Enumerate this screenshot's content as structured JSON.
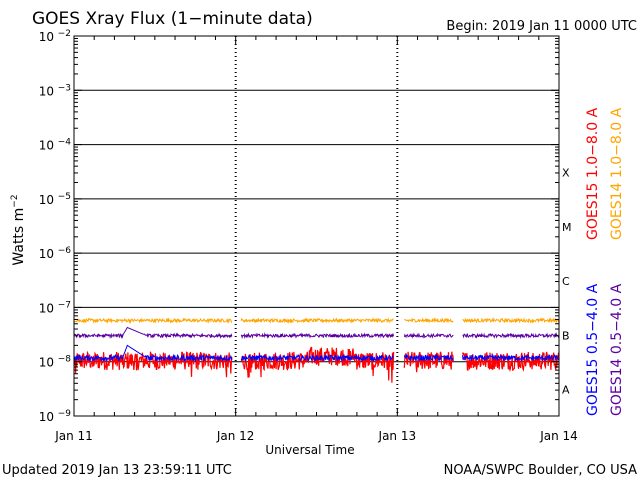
{
  "chart_data": {
    "type": "line",
    "title": "GOES Xray Flux (1−minute data)",
    "begin_label": "Begin:  2019 Jan 11 0000 UTC",
    "xlabel": "Universal Time",
    "ylabel": "Watts m",
    "ylabel_sup": "−2",
    "x_range_days": [
      0,
      3
    ],
    "x_ticks": [
      {
        "day": 0,
        "label": "Jan 11"
      },
      {
        "day": 1,
        "label": "Jan 12"
      },
      {
        "day": 2,
        "label": "Jan 13"
      },
      {
        "day": 3,
        "label": "Jan 14"
      }
    ],
    "y_scale": "log",
    "ylim_exp": [
      -9,
      -2
    ],
    "y_ticks": [
      {
        "exp": -2,
        "mantissa": "10",
        "sup": "−2"
      },
      {
        "exp": -3,
        "mantissa": "10",
        "sup": "−3"
      },
      {
        "exp": -4,
        "mantissa": "10",
        "sup": "−4"
      },
      {
        "exp": -5,
        "mantissa": "10",
        "sup": "−5"
      },
      {
        "exp": -6,
        "mantissa": "10",
        "sup": "−6"
      },
      {
        "exp": -7,
        "mantissa": "10",
        "sup": "−7"
      },
      {
        "exp": -8,
        "mantissa": "10",
        "sup": "−8"
      },
      {
        "exp": -9,
        "mantissa": "10",
        "sup": "−9"
      }
    ],
    "flare_classes": [
      {
        "label": "X",
        "exp": -4
      },
      {
        "label": "M",
        "exp": -5
      },
      {
        "label": "C",
        "exp": -6
      },
      {
        "label": "B",
        "exp": -7
      },
      {
        "label": "A",
        "exp": -8
      }
    ],
    "gaps": [
      [
        0.98,
        1.03
      ],
      [
        1.98,
        2.04
      ],
      [
        2.35,
        2.4
      ]
    ],
    "series": [
      {
        "name": "GOES15 1.0−8.0 A",
        "color": "#ff0000",
        "base_log": -8.05,
        "noise_log": 0.35,
        "spike_day": null,
        "spike_log": null
      },
      {
        "name": "GOES14 1.0−8.0 A",
        "color": "#ffa500",
        "base_log": -7.24,
        "noise_log": 0.03,
        "spike_day": null,
        "spike_log": null
      },
      {
        "name": "GOES15 0.5−4.0 A",
        "color": "#0000ff",
        "base_log": -7.93,
        "noise_log": 0.05,
        "spike_day": 0.33,
        "spike_log": -7.7
      },
      {
        "name": "GOES14 0.5−4.0 A",
        "color": "#5a00a0",
        "base_log": -7.52,
        "noise_log": 0.03,
        "spike_day": 0.33,
        "spike_log": -7.37
      }
    ],
    "grid": true
  },
  "footer": {
    "updated": "Updated 2019 Jan 13 23:59:11 UTC",
    "credit": "NOAA/SWPC Boulder, CO USA"
  }
}
